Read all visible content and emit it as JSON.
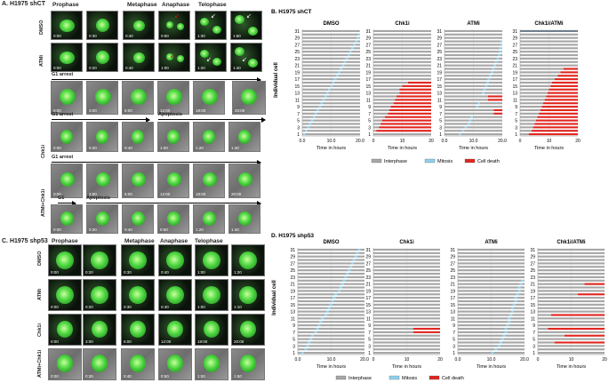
{
  "panelA": {
    "title": "A. H1975 shCT",
    "col_heads": [
      "Prophase",
      "Metaphase",
      "Anaphase",
      "Telophase"
    ],
    "rows": [
      {
        "label": "DMSO",
        "times": [
          "0:00",
          "0:30",
          "0:40",
          "0:50",
          "1:30",
          "1:50"
        ]
      },
      {
        "label": "ATMi",
        "times": [
          "0:00",
          "0:20",
          "0:40",
          "1:00",
          "1:20",
          "1:40"
        ]
      }
    ],
    "chk1": {
      "label": "Chk1i",
      "arrest_label": "G1 arrest",
      "arrest_times": [
        "0:00",
        "3:00",
        "6:00",
        "12:00",
        "18:00",
        "20:00"
      ],
      "arrest2_label": "G1 arrest",
      "apoptosis_label": "Apoptosis",
      "apop_times": [
        "0:00",
        "0:20",
        "0:40",
        "1:00",
        "1:20",
        "1:40"
      ]
    },
    "combo": {
      "label": "ATMi+Chk1i",
      "arrest_label": "G1 arrest",
      "arrest_times": [
        "0:00",
        "3:00",
        "6:00",
        "12:00",
        "18:00",
        "20:00"
      ],
      "g1_label": "G1",
      "apoptosis_label": "Apoptosis",
      "apop_times": [
        "0:00",
        "0:20",
        "0:40",
        "0:50",
        "1:20",
        "1:40"
      ]
    }
  },
  "panelC": {
    "title": "C. H1975 shp53",
    "col_heads": [
      "Prophase",
      "Metaphase",
      "Anaphase",
      "Telophase"
    ],
    "rows": [
      {
        "label": "DMSO",
        "times": [
          "0:00",
          "0:20",
          "0:30",
          "0:40",
          "1:00",
          "1:20"
        ]
      },
      {
        "label": "ATMi",
        "times": [
          "0:00",
          "0:20",
          "0:30",
          "0:40",
          "1:00",
          "1:10"
        ]
      },
      {
        "label": "Chk1i",
        "times": [
          "0:00",
          "3:00",
          "6:00",
          "12:00",
          "18:00",
          "20:00"
        ]
      },
      {
        "label": "ATMi+Chk1i",
        "times": [
          "0:00",
          "0:30",
          "0:40",
          "0:50",
          "1:00",
          "1:50"
        ]
      }
    ]
  },
  "colors": {
    "interphase": "#a6a6a6",
    "mitosis": "#8fd0ef",
    "death": "#e0261f",
    "dmso_gray": "#bfbfbf"
  },
  "chart_data": [
    {
      "type": "bar",
      "id": "B",
      "panel_title": "B. H1975 shCT",
      "ylabel": "Individual cell",
      "xlabel": "Time in hours",
      "yticks": [
        1,
        3,
        5,
        7,
        9,
        11,
        13,
        15,
        17,
        19,
        21,
        23,
        25,
        27,
        29,
        31
      ],
      "legend": [
        "Interphase",
        "Mitosis",
        "Cell death"
      ],
      "subplots": [
        {
          "title": "DMSO",
          "xlim": [
            0,
            20
          ],
          "xticks": [
            "0.0",
            "10.0",
            "20.0"
          ],
          "mitosis_start": [
            0.3,
            1,
            1.7,
            2.3,
            3,
            3.7,
            4.3,
            5,
            5.7,
            6.3,
            7,
            7.7,
            8.3,
            9,
            9.7,
            10.3,
            11,
            11.7,
            12.3,
            13,
            13.7,
            14.3,
            15,
            15.7,
            16.3,
            17,
            17.7,
            18.3,
            19,
            19.3,
            19.7
          ],
          "death_start": []
        },
        {
          "title": "Chk1i",
          "xlim": [
            0,
            20
          ],
          "xticks": [
            "0",
            "10",
            "20"
          ],
          "mitosis_start": [],
          "death_start": [
            0,
            1,
            2,
            2.5,
            3,
            4,
            5,
            5.5,
            6,
            7,
            7.5,
            8,
            9,
            9,
            10,
            12,
            0,
            0,
            0,
            0,
            0,
            0,
            0,
            0,
            0,
            0,
            0,
            0,
            0,
            0,
            0
          ]
        },
        {
          "title": "ATMi",
          "xlim": [
            0,
            20
          ],
          "xticks": [
            "0.0",
            "10.0",
            "20.0"
          ],
          "mitosis_start": [
            5,
            6,
            7,
            8,
            8.5,
            9,
            10,
            10.5,
            11,
            11.5,
            12,
            12.5,
            13,
            13.5,
            14,
            14.5,
            15,
            15.5,
            16,
            16.5,
            17,
            17.5,
            18,
            18.5,
            19,
            19,
            19.5,
            19.5,
            0,
            0,
            0
          ],
          "death_start": [
            0,
            0,
            0,
            0,
            0,
            0,
            17,
            17,
            0,
            0,
            15,
            15,
            0,
            0,
            0,
            0,
            0,
            0,
            0,
            0,
            0,
            0,
            0,
            0,
            0,
            0,
            0,
            0,
            0,
            0,
            0
          ]
        },
        {
          "title": "Chk1i/ATMi",
          "xlim": [
            0,
            20
          ],
          "xticks": [
            "0",
            "10",
            "20"
          ],
          "mitosis_start": [],
          "death_start": [
            3,
            4,
            4.5,
            5,
            5.5,
            6,
            6.5,
            7,
            7.5,
            8,
            8.5,
            9,
            9.5,
            10,
            10.5,
            11,
            12,
            13,
            14,
            15,
            0,
            0,
            0,
            0,
            0,
            0,
            0,
            0,
            0,
            0,
            0
          ]
        }
      ]
    },
    {
      "type": "bar",
      "id": "D",
      "panel_title": "D. H1975 shp53",
      "ylabel": "Individual cell",
      "xlabel": "Time in hours",
      "yticks": [
        1,
        3,
        5,
        7,
        9,
        11,
        13,
        15,
        17,
        19,
        21,
        23,
        25,
        27,
        29,
        31
      ],
      "legend": [
        "Interphase",
        "Mitosis",
        "Cell death"
      ],
      "subplots": [
        {
          "title": "DMSO",
          "xlim": [
            0,
            20
          ],
          "xticks": [
            "0.0",
            "10.0",
            "20.0"
          ],
          "mitosis_start": [
            1,
            2,
            2.5,
            3,
            3.5,
            4,
            5,
            5.5,
            6,
            6.5,
            7,
            8,
            8.5,
            9,
            9.5,
            10,
            10.5,
            11,
            12,
            12.5,
            13,
            13.5,
            14,
            14.5,
            15,
            15.5,
            16,
            16.5,
            17,
            17.5,
            18
          ],
          "death_start": []
        },
        {
          "title": "Chk1i",
          "xlim": [
            0,
            20
          ],
          "xticks": [
            "0",
            "10",
            "20"
          ],
          "mitosis_start": [],
          "death_start": [
            0,
            0,
            0,
            0,
            0,
            0,
            12,
            12,
            0,
            0,
            0,
            0,
            0,
            0,
            0,
            0,
            0,
            0,
            0,
            0,
            0,
            0,
            0,
            0,
            0,
            0,
            0,
            0,
            0,
            0,
            0
          ]
        },
        {
          "title": "ATMi",
          "xlim": [
            0,
            20
          ],
          "xticks": [
            "0.0",
            "10.0",
            "20.0"
          ],
          "mitosis_start": [
            10,
            11,
            12,
            12.5,
            13,
            13.5,
            14,
            14,
            14.5,
            15,
            15,
            15.5,
            16,
            16,
            16.5,
            17,
            17,
            17.5,
            18,
            18,
            18.5,
            19,
            0,
            0,
            0,
            0,
            0,
            0,
            0,
            0,
            0
          ],
          "death_start": []
        },
        {
          "title": "Chk1i/ATMi",
          "xlim": [
            0,
            20
          ],
          "xticks": [
            "0",
            "10",
            "20"
          ],
          "mitosis_start": [],
          "death_start": [
            0,
            0,
            0,
            5,
            0,
            8,
            0,
            3,
            0,
            0,
            0,
            4,
            0,
            0,
            0,
            0,
            0,
            12,
            0,
            0,
            14,
            0,
            0,
            0,
            0,
            0,
            0,
            0,
            0,
            0,
            0
          ]
        }
      ]
    }
  ]
}
